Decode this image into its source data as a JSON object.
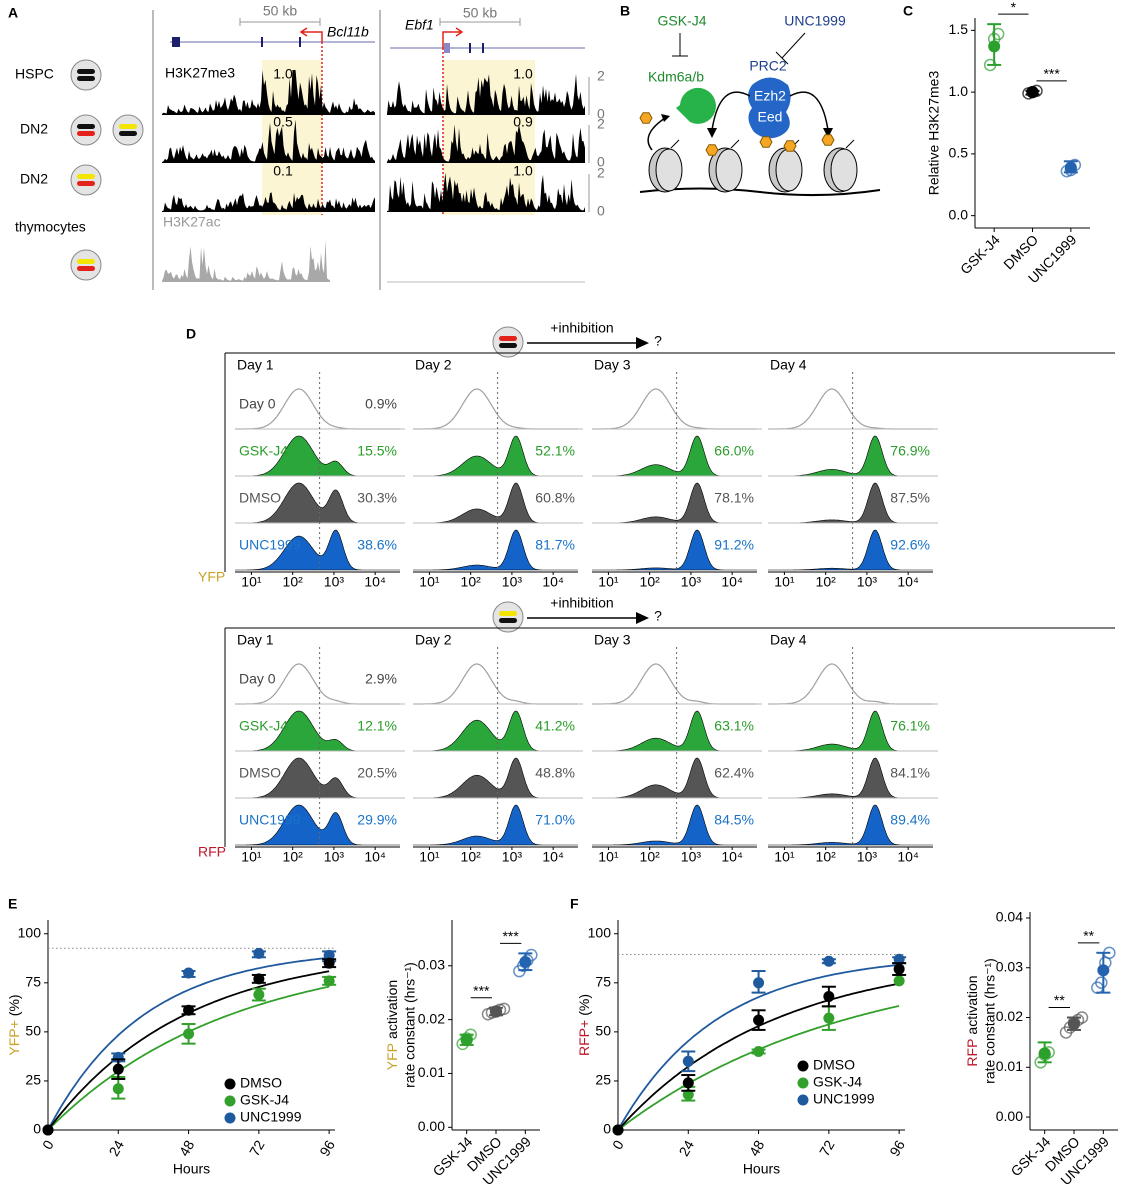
{
  "panel_labels": [
    "A",
    "B",
    "C",
    "D",
    "E",
    "F"
  ],
  "panel_a": {
    "scale_bars": [
      "50 kb",
      "50 kb"
    ],
    "genes": [
      "Bcl11b",
      "Ebf1"
    ],
    "row_labels": [
      "HSPC",
      "DN2",
      "DN2",
      "thymocytes"
    ],
    "marks": [
      "H3K27me3",
      "H3K27ac"
    ],
    "track_values": [
      [
        "1.0",
        "0.5",
        "0.1"
      ],
      [
        "1.0",
        "0.9",
        "1.0"
      ]
    ],
    "track_axis": [
      [
        "2",
        "0"
      ],
      [
        "2",
        "0"
      ],
      [
        "2",
        "0"
      ]
    ]
  },
  "panel_b": {
    "inhibitors": [
      "GSK-J4",
      "UNC1999"
    ],
    "demethylase": "Kdm6a/b",
    "complex": "PRC2",
    "subunits": [
      "Ezh2",
      "Eed"
    ]
  },
  "panel_d": {
    "xlim": [
      4,
      40000
    ],
    "xticks": [
      {
        "value": 10,
        "label": "10¹"
      },
      {
        "value": 100,
        "label": "10²"
      },
      {
        "value": 1000,
        "label": "10³"
      },
      {
        "value": 10000,
        "label": "10⁴"
      }
    ],
    "gate": 450,
    "conditions": [
      "Day 0",
      "GSK-J4",
      "DMSO",
      "UNC1999"
    ],
    "colors": [
      "#a0a0a0",
      "#2aa63a",
      "#555555",
      "#1463c9"
    ],
    "label_colors": [
      "#444444",
      "#2a9d2a",
      "#555555",
      "#1a73c8"
    ],
    "blocks": [
      {
        "header": "+inhibition",
        "question": "?",
        "channel": "YFP",
        "channel_color": "#c9a227",
        "columns": [
          {
            "day": "Day 1",
            "values": [
              0.9,
              15.5,
              30.3,
              38.6
            ],
            "value_labels": [
              "0.9%",
              "15.5%",
              "30.3%",
              "38.6%"
            ]
          },
          {
            "day": "Day 2",
            "values": [
              null,
              52.1,
              60.8,
              81.7
            ],
            "value_labels": [
              null,
              "52.1%",
              "60.8%",
              "81.7%"
            ]
          },
          {
            "day": "Day 3",
            "values": [
              null,
              66.0,
              78.1,
              91.2
            ],
            "value_labels": [
              null,
              "66.0%",
              "78.1%",
              "91.2%"
            ]
          },
          {
            "day": "Day 4",
            "values": [
              null,
              76.9,
              87.5,
              92.6
            ],
            "value_labels": [
              null,
              "76.9%",
              "87.5%",
              "92.6%"
            ]
          }
        ]
      },
      {
        "header": "+inhibition",
        "question": "?",
        "channel": "RFP",
        "channel_color": "#c0182b",
        "columns": [
          {
            "day": "Day 1",
            "values": [
              2.9,
              12.1,
              20.5,
              29.9
            ],
            "value_labels": [
              "2.9%",
              "12.1%",
              "20.5%",
              "29.9%"
            ]
          },
          {
            "day": "Day 2",
            "values": [
              null,
              41.2,
              48.8,
              71.0
            ],
            "value_labels": [
              null,
              "41.2%",
              "48.8%",
              "71.0%"
            ]
          },
          {
            "day": "Day 3",
            "values": [
              null,
              63.1,
              62.4,
              84.5
            ],
            "value_labels": [
              null,
              "63.1%",
              "62.4%",
              "84.5%"
            ]
          },
          {
            "day": "Day 4",
            "values": [
              null,
              76.1,
              84.1,
              89.4
            ],
            "value_labels": [
              null,
              "76.1%",
              "84.1%",
              "89.4%"
            ]
          }
        ]
      }
    ]
  },
  "chart_data": [
    {
      "type": "dot",
      "ylabel": "Relative H3K27me3",
      "categories": [
        "GSK-J4",
        "DMSO",
        "UNC1999"
      ],
      "colors": [
        "#2ca02c",
        "#000000",
        "#2463b0"
      ],
      "values": [
        1.37,
        1.0,
        0.39
      ],
      "error": [
        [
          1.22,
          1.55
        ],
        [
          0.98,
          1.01
        ],
        [
          0.35,
          0.44
        ]
      ],
      "replicates": [
        [
          1.22,
          1.43,
          1.47
        ],
        [
          0.99,
          1.0,
          1.01
        ],
        [
          0.36,
          0.37,
          0.41
        ]
      ],
      "significance": [
        "*",
        "***"
      ],
      "ylim": [
        -0.1,
        1.6
      ],
      "yticks": [
        {
          "value": 0,
          "label": "0.0"
        },
        0.5,
        {
          "value": 1,
          "label": "1.0"
        },
        1.5
      ]
    },
    {
      "type": "line",
      "ylabel_channel": "YFP+",
      "channel_color": "#c9a227",
      "ylabel": "(%)",
      "xlabel": "Hours",
      "x": [
        0,
        24,
        48,
        72,
        96
      ],
      "xlim": [
        0,
        98
      ],
      "xticks": [
        0,
        24,
        48,
        72,
        96
      ],
      "ylim": [
        0,
        107
      ],
      "yticks": [
        0,
        25,
        50,
        75,
        100
      ],
      "plateau": 92.6,
      "series": [
        {
          "name": "DMSO",
          "color": "#000000",
          "values": [
            0,
            31,
            61,
            77,
            85
          ],
          "error": [
            null,
            [
              26,
              36
            ],
            [
              59,
              63
            ],
            [
              75,
              79
            ],
            [
              83,
              87
            ]
          ]
        },
        {
          "name": "GSK-J4",
          "color": "#33a02c",
          "values": [
            0,
            21,
            49,
            69,
            76
          ],
          "error": [
            null,
            [
              16,
              27
            ],
            [
              44,
              54
            ],
            [
              66,
              72
            ],
            [
              74,
              78
            ]
          ]
        },
        {
          "name": "UNC1999",
          "color": "#1f5a9e",
          "values": [
            0,
            37,
            80,
            90,
            89
          ],
          "error": [
            null,
            [
              35,
              39
            ],
            [
              78,
              81
            ],
            [
              88,
              91
            ],
            [
              86,
              91
            ]
          ]
        }
      ]
    },
    {
      "type": "dot",
      "ylabel_channel": "YFP",
      "channel_color": "#c9a227",
      "ylabel": [
        "activation",
        "rate constant (hrs⁻¹)"
      ],
      "categories": [
        "GSK-J4",
        "DMSO",
        "UNC1999"
      ],
      "colors": [
        "#2ca02c",
        "#555555",
        "#2463b0"
      ],
      "values": [
        0.0162,
        0.0215,
        0.0307
      ],
      "error": [
        [
          0.0153,
          0.0172
        ],
        [
          0.0208,
          0.0222
        ],
        [
          0.0292,
          0.0323
        ]
      ],
      "replicates": [
        [
          0.0155,
          0.0165,
          0.0172
        ],
        [
          0.021,
          0.0213,
          0.0215,
          0.0218,
          0.022
        ],
        [
          0.029,
          0.03,
          0.031,
          0.032
        ]
      ],
      "significance": [
        "***",
        "***"
      ],
      "ylim": [
        -0.0005,
        0.0385
      ],
      "yticks": [
        {
          "value": 0,
          "label": "0.00"
        },
        0.01,
        0.02,
        0.03
      ]
    },
    {
      "type": "line",
      "ylabel_channel": "RFP+",
      "channel_color": "#c0182b",
      "ylabel": "(%)",
      "xlabel": "Hours",
      "x": [
        0,
        24,
        48,
        72,
        96
      ],
      "xlim": [
        0,
        98
      ],
      "xticks": [
        0,
        24,
        48,
        72,
        96
      ],
      "ylim": [
        0,
        107
      ],
      "yticks": [
        0,
        25,
        50,
        75,
        100
      ],
      "plateau": 89.4,
      "series": [
        {
          "name": "DMSO",
          "color": "#000000",
          "values": [
            0,
            24,
            56,
            68,
            82
          ],
          "error": [
            null,
            [
              20,
              28
            ],
            [
              51,
              61
            ],
            [
              63,
              73
            ],
            [
              79,
              85
            ]
          ]
        },
        {
          "name": "GSK-J4",
          "color": "#33a02c",
          "values": [
            0,
            18,
            40,
            57,
            76
          ],
          "error": [
            null,
            [
              15,
              22
            ],
            [
              39,
              41
            ],
            [
              51,
              63
            ],
            null
          ]
        },
        {
          "name": "UNC1999",
          "color": "#1f5a9e",
          "values": [
            0,
            35,
            75,
            86,
            87
          ],
          "error": [
            null,
            [
              30,
              40
            ],
            [
              70,
              81
            ],
            [
              85,
              87
            ],
            [
              85,
              88
            ]
          ]
        }
      ]
    },
    {
      "type": "dot",
      "ylabel_channel": "RFP",
      "channel_color": "#c0182b",
      "ylabel": [
        "activation",
        "rate constant (hrs⁻¹)"
      ],
      "categories": [
        "GSK-J4",
        "DMSO",
        "UNC1999"
      ],
      "colors": [
        "#2ca02c",
        "#555555",
        "#2463b0"
      ],
      "values": [
        0.0128,
        0.0187,
        0.0295
      ],
      "error": [
        [
          0.011,
          0.015
        ],
        [
          0.0175,
          0.02
        ],
        [
          0.025,
          0.033
        ]
      ],
      "replicates": [
        [
          0.011,
          0.0125,
          0.013
        ],
        [
          0.017,
          0.018,
          0.019,
          0.0195,
          0.02
        ],
        [
          0.026,
          0.027,
          0.031,
          0.033
        ]
      ],
      "significance": [
        "**",
        "**"
      ],
      "ylim": [
        -0.0026,
        0.0412
      ],
      "yticks": [
        {
          "value": 0,
          "label": "0.00"
        },
        0.01,
        0.02,
        0.03,
        0.04
      ]
    }
  ]
}
